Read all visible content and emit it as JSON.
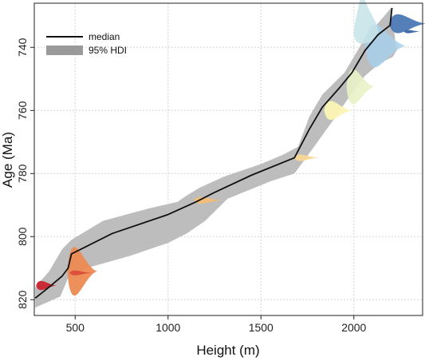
{
  "chart_data": {
    "type": "line",
    "title": "",
    "xlabel": "Height (m)",
    "ylabel": "Age (Ma)",
    "xlim": [
      280,
      2370
    ],
    "ylim": [
      825,
      726
    ],
    "y_inverted": true,
    "grid": true,
    "legend_placement": "top-left",
    "x_ticks": [
      500,
      1000,
      1500,
      2000
    ],
    "x_tick_labels": [
      "500",
      "1000",
      "1500",
      "2000"
    ],
    "y_ticks": [
      740,
      760,
      780,
      800,
      820
    ],
    "y_tick_labels": [
      "740",
      "760",
      "780",
      "800",
      "820"
    ],
    "legend": [
      {
        "label": "median",
        "kind": "line",
        "color": "#111111"
      },
      {
        "label": "95% HDI",
        "kind": "band",
        "color": "#9a9a9a"
      }
    ],
    "series": [
      {
        "name": "median",
        "kind": "line",
        "color": "#111111",
        "points": [
          [
            285,
            819.5
          ],
          [
            360,
            816
          ],
          [
            430,
            812.5
          ],
          [
            462,
            810
          ],
          [
            480,
            805.5
          ],
          [
            700,
            799
          ],
          [
            1000,
            793
          ],
          [
            1150,
            789
          ],
          [
            1250,
            786
          ],
          [
            1450,
            780.5
          ],
          [
            1680,
            775
          ],
          [
            1760,
            766
          ],
          [
            1830,
            759
          ],
          [
            1920,
            753
          ],
          [
            1990,
            748
          ],
          [
            2060,
            741
          ],
          [
            2130,
            736
          ],
          [
            2195,
            733
          ],
          [
            2205,
            727.5
          ]
        ]
      },
      {
        "name": "95% HDI",
        "kind": "band",
        "color": "#bdbdbd",
        "upper": [
          [
            285,
            816
          ],
          [
            360,
            811
          ],
          [
            430,
            804
          ],
          [
            480,
            801
          ],
          [
            650,
            795
          ],
          [
            900,
            791
          ],
          [
            1050,
            789
          ],
          [
            1100,
            787
          ],
          [
            1170,
            784.5
          ],
          [
            1300,
            781
          ],
          [
            1500,
            777
          ],
          [
            1620,
            774
          ],
          [
            1700,
            771.5
          ],
          [
            1760,
            762
          ],
          [
            1830,
            755
          ],
          [
            1950,
            748
          ],
          [
            2060,
            737
          ],
          [
            2150,
            731
          ],
          [
            2200,
            727.5
          ]
        ],
        "lower": [
          [
            285,
            822.5
          ],
          [
            420,
            819
          ],
          [
            470,
            812
          ],
          [
            560,
            810
          ],
          [
            800,
            806
          ],
          [
            1000,
            802
          ],
          [
            1100,
            799
          ],
          [
            1200,
            795
          ],
          [
            1320,
            788
          ],
          [
            1550,
            782.5
          ],
          [
            1680,
            780
          ],
          [
            1780,
            772
          ],
          [
            1890,
            763
          ],
          [
            1960,
            757
          ],
          [
            2060,
            749
          ],
          [
            2140,
            745
          ],
          [
            2210,
            743
          ],
          [
            2230,
            741
          ]
        ]
      }
    ],
    "density_annotations": [
      {
        "age": 815.5,
        "height": 290,
        "direction": "right",
        "length": 110,
        "halfwidth": 1.7,
        "color": "#c8242e",
        "opacity": 0.95
      },
      {
        "age": 811.0,
        "height": 458,
        "direction": "right",
        "length": 160,
        "halfwidth": 9.0,
        "color": "#ec8a52",
        "opacity": 0.95
      },
      {
        "age": 811.5,
        "height": 470,
        "direction": "right",
        "length": 120,
        "halfwidth": 0.9,
        "color": "#d94a38",
        "opacity": 0.9
      },
      {
        "age": 788.5,
        "height": 1140,
        "direction": "right",
        "length": 150,
        "halfwidth": 1.2,
        "color": "#f4bd72",
        "opacity": 0.95
      },
      {
        "age": 775.0,
        "height": 1680,
        "direction": "right",
        "length": 130,
        "halfwidth": 1.2,
        "color": "#f8d796",
        "opacity": 0.95
      },
      {
        "age": 760.0,
        "height": 1840,
        "direction": "right",
        "length": 150,
        "halfwidth": 3.5,
        "color": "#fbf6b4",
        "opacity": 0.95
      },
      {
        "age": 752.5,
        "height": 1960,
        "direction": "right",
        "length": 150,
        "halfwidth": 6.5,
        "color": "#e8f2c6",
        "opacity": 0.9
      },
      {
        "age": 739.5,
        "height": 2060,
        "direction": "right",
        "length": 220,
        "halfwidth": 8.0,
        "color": "#a7d0ea",
        "opacity": 0.85
      },
      {
        "age": 739.0,
        "height": 2040,
        "direction": "up",
        "length": 18,
        "halfwidth": 150,
        "color": "#c5e3e8",
        "opacity": 0.85
      },
      {
        "age": 732.5,
        "height": 2190,
        "direction": "right",
        "length": 200,
        "halfwidth": 3.5,
        "color": "#4b78b5",
        "opacity": 0.95
      },
      {
        "age": 735.0,
        "height": 2270,
        "direction": "right",
        "length": 90,
        "halfwidth": 0.6,
        "color": "#3a64a6",
        "opacity": 0.95
      }
    ]
  }
}
